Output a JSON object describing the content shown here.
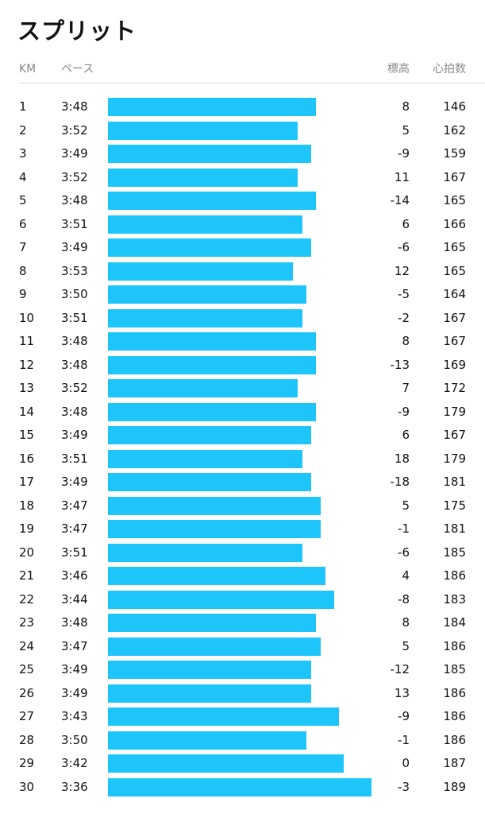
{
  "title": "スプリット",
  "headers": {
    "km": "KM",
    "pace": "ペース",
    "elevation": "標高",
    "heart_rate": "心拍数"
  },
  "bar_color": "#1ec5fa",
  "splits": [
    {
      "km": "1",
      "pace": "3:48",
      "elevation": "8",
      "heart_rate": "146"
    },
    {
      "km": "2",
      "pace": "3:52",
      "elevation": "5",
      "heart_rate": "162"
    },
    {
      "km": "3",
      "pace": "3:49",
      "elevation": "-9",
      "heart_rate": "159"
    },
    {
      "km": "4",
      "pace": "3:52",
      "elevation": "11",
      "heart_rate": "167"
    },
    {
      "km": "5",
      "pace": "3:48",
      "elevation": "-14",
      "heart_rate": "165"
    },
    {
      "km": "6",
      "pace": "3:51",
      "elevation": "6",
      "heart_rate": "166"
    },
    {
      "km": "7",
      "pace": "3:49",
      "elevation": "-6",
      "heart_rate": "165"
    },
    {
      "km": "8",
      "pace": "3:53",
      "elevation": "12",
      "heart_rate": "165"
    },
    {
      "km": "9",
      "pace": "3:50",
      "elevation": "-5",
      "heart_rate": "164"
    },
    {
      "km": "10",
      "pace": "3:51",
      "elevation": "-2",
      "heart_rate": "167"
    },
    {
      "km": "11",
      "pace": "3:48",
      "elevation": "8",
      "heart_rate": "167"
    },
    {
      "km": "12",
      "pace": "3:48",
      "elevation": "-13",
      "heart_rate": "169"
    },
    {
      "km": "13",
      "pace": "3:52",
      "elevation": "7",
      "heart_rate": "172"
    },
    {
      "km": "14",
      "pace": "3:48",
      "elevation": "-9",
      "heart_rate": "179"
    },
    {
      "km": "15",
      "pace": "3:49",
      "elevation": "6",
      "heart_rate": "167"
    },
    {
      "km": "16",
      "pace": "3:51",
      "elevation": "18",
      "heart_rate": "179"
    },
    {
      "km": "17",
      "pace": "3:49",
      "elevation": "-18",
      "heart_rate": "181"
    },
    {
      "km": "18",
      "pace": "3:47",
      "elevation": "5",
      "heart_rate": "175"
    },
    {
      "km": "19",
      "pace": "3:47",
      "elevation": "-1",
      "heart_rate": "181"
    },
    {
      "km": "20",
      "pace": "3:51",
      "elevation": "-6",
      "heart_rate": "185"
    },
    {
      "km": "21",
      "pace": "3:46",
      "elevation": "4",
      "heart_rate": "186"
    },
    {
      "km": "22",
      "pace": "3:44",
      "elevation": "-8",
      "heart_rate": "183"
    },
    {
      "km": "23",
      "pace": "3:48",
      "elevation": "8",
      "heart_rate": "184"
    },
    {
      "km": "24",
      "pace": "3:47",
      "elevation": "5",
      "heart_rate": "186"
    },
    {
      "km": "25",
      "pace": "3:49",
      "elevation": "-12",
      "heart_rate": "185"
    },
    {
      "km": "26",
      "pace": "3:49",
      "elevation": "13",
      "heart_rate": "186"
    },
    {
      "km": "27",
      "pace": "3:43",
      "elevation": "-9",
      "heart_rate": "186"
    },
    {
      "km": "28",
      "pace": "3:50",
      "elevation": "-1",
      "heart_rate": "186"
    },
    {
      "km": "29",
      "pace": "3:42",
      "elevation": "0",
      "heart_rate": "187"
    },
    {
      "km": "30",
      "pace": "3:36",
      "elevation": "-3",
      "heart_rate": "189"
    }
  ]
}
